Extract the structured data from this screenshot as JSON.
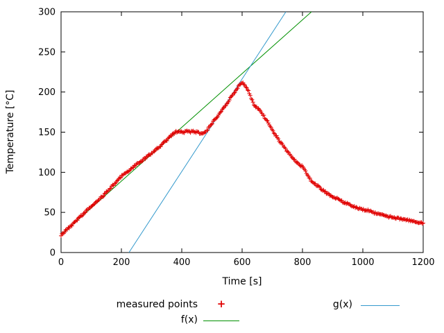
{
  "chart_data": {
    "type": "scatter",
    "title": "",
    "xlabel": "Time [s]",
    "ylabel": "Temperature [°C]",
    "xlim": [
      0,
      1200
    ],
    "ylim": [
      0,
      300
    ],
    "xticks": [
      0,
      200,
      400,
      600,
      800,
      1000,
      1200
    ],
    "yticks": [
      0,
      50,
      100,
      150,
      200,
      250,
      300
    ],
    "grid": false,
    "legend_position": "below",
    "series": [
      {
        "name": "measured points",
        "type": "points",
        "marker": "plus",
        "color": "#e00000",
        "points": [
          [
            0,
            22
          ],
          [
            10,
            25
          ],
          [
            20,
            29
          ],
          [
            30,
            32
          ],
          [
            40,
            36
          ],
          [
            50,
            40
          ],
          [
            60,
            43
          ],
          [
            70,
            47
          ],
          [
            80,
            50
          ],
          [
            90,
            54
          ],
          [
            100,
            57
          ],
          [
            110,
            61
          ],
          [
            120,
            64
          ],
          [
            130,
            68
          ],
          [
            140,
            71
          ],
          [
            150,
            75
          ],
          [
            160,
            79
          ],
          [
            170,
            83
          ],
          [
            180,
            87
          ],
          [
            190,
            91
          ],
          [
            200,
            95
          ],
          [
            210,
            98
          ],
          [
            220,
            101
          ],
          [
            230,
            104
          ],
          [
            240,
            107
          ],
          [
            250,
            110
          ],
          [
            260,
            112
          ],
          [
            270,
            115
          ],
          [
            280,
            118
          ],
          [
            290,
            121
          ],
          [
            300,
            124
          ],
          [
            310,
            127
          ],
          [
            320,
            130
          ],
          [
            330,
            133
          ],
          [
            340,
            137
          ],
          [
            350,
            140
          ],
          [
            360,
            144
          ],
          [
            370,
            147
          ],
          [
            380,
            150
          ],
          [
            390,
            152
          ],
          [
            395,
            151
          ],
          [
            400,
            151
          ],
          [
            405,
            150
          ],
          [
            410,
            150
          ],
          [
            415,
            151
          ],
          [
            420,
            151
          ],
          [
            425,
            150
          ],
          [
            430,
            150
          ],
          [
            435,
            151
          ],
          [
            440,
            151
          ],
          [
            445,
            150
          ],
          [
            450,
            150
          ],
          [
            455,
            149
          ],
          [
            460,
            149
          ],
          [
            465,
            148
          ],
          [
            470,
            148
          ],
          [
            475,
            149
          ],
          [
            480,
            151
          ],
          [
            485,
            153
          ],
          [
            490,
            156
          ],
          [
            500,
            161
          ],
          [
            510,
            166
          ],
          [
            520,
            171
          ],
          [
            530,
            176
          ],
          [
            540,
            181
          ],
          [
            550,
            186
          ],
          [
            560,
            192
          ],
          [
            570,
            197
          ],
          [
            580,
            203
          ],
          [
            590,
            208
          ],
          [
            600,
            211
          ],
          [
            610,
            209
          ],
          [
            620,
            202
          ],
          [
            630,
            193
          ],
          [
            640,
            184
          ],
          [
            650,
            180
          ],
          [
            660,
            176
          ],
          [
            670,
            171
          ],
          [
            680,
            166
          ],
          [
            690,
            160
          ],
          [
            700,
            153
          ],
          [
            710,
            147
          ],
          [
            720,
            141
          ],
          [
            730,
            136
          ],
          [
            740,
            131
          ],
          [
            750,
            126
          ],
          [
            760,
            122
          ],
          [
            770,
            117
          ],
          [
            780,
            113
          ],
          [
            790,
            110
          ],
          [
            800,
            107
          ],
          [
            810,
            101
          ],
          [
            820,
            94
          ],
          [
            830,
            89
          ],
          [
            840,
            86
          ],
          [
            850,
            83
          ],
          [
            860,
            80
          ],
          [
            870,
            77
          ],
          [
            880,
            74
          ],
          [
            890,
            72
          ],
          [
            900,
            70
          ],
          [
            920,
            66
          ],
          [
            940,
            62
          ],
          [
            960,
            59
          ],
          [
            980,
            56
          ],
          [
            1000,
            54
          ],
          [
            1020,
            52
          ],
          [
            1040,
            49
          ],
          [
            1060,
            47
          ],
          [
            1080,
            45
          ],
          [
            1100,
            44
          ],
          [
            1120,
            42
          ],
          [
            1140,
            41
          ],
          [
            1160,
            39
          ],
          [
            1180,
            38
          ],
          [
            1200,
            37
          ]
        ]
      },
      {
        "name": "f(x)",
        "type": "line",
        "color": "#009000",
        "slope": 0.335,
        "intercept": 22
      },
      {
        "name": "g(x)",
        "type": "line",
        "color": "#3399cc",
        "slope": 0.5769,
        "intercept": -129.8
      }
    ]
  },
  "legend": {
    "measured": "measured points",
    "measured_marker": "+",
    "f": "f(x)",
    "g": "g(x)"
  },
  "colors": {
    "measured": "#e00000",
    "f": "#009000",
    "g": "#3399cc",
    "axis": "#000000",
    "background": "#ffffff"
  }
}
